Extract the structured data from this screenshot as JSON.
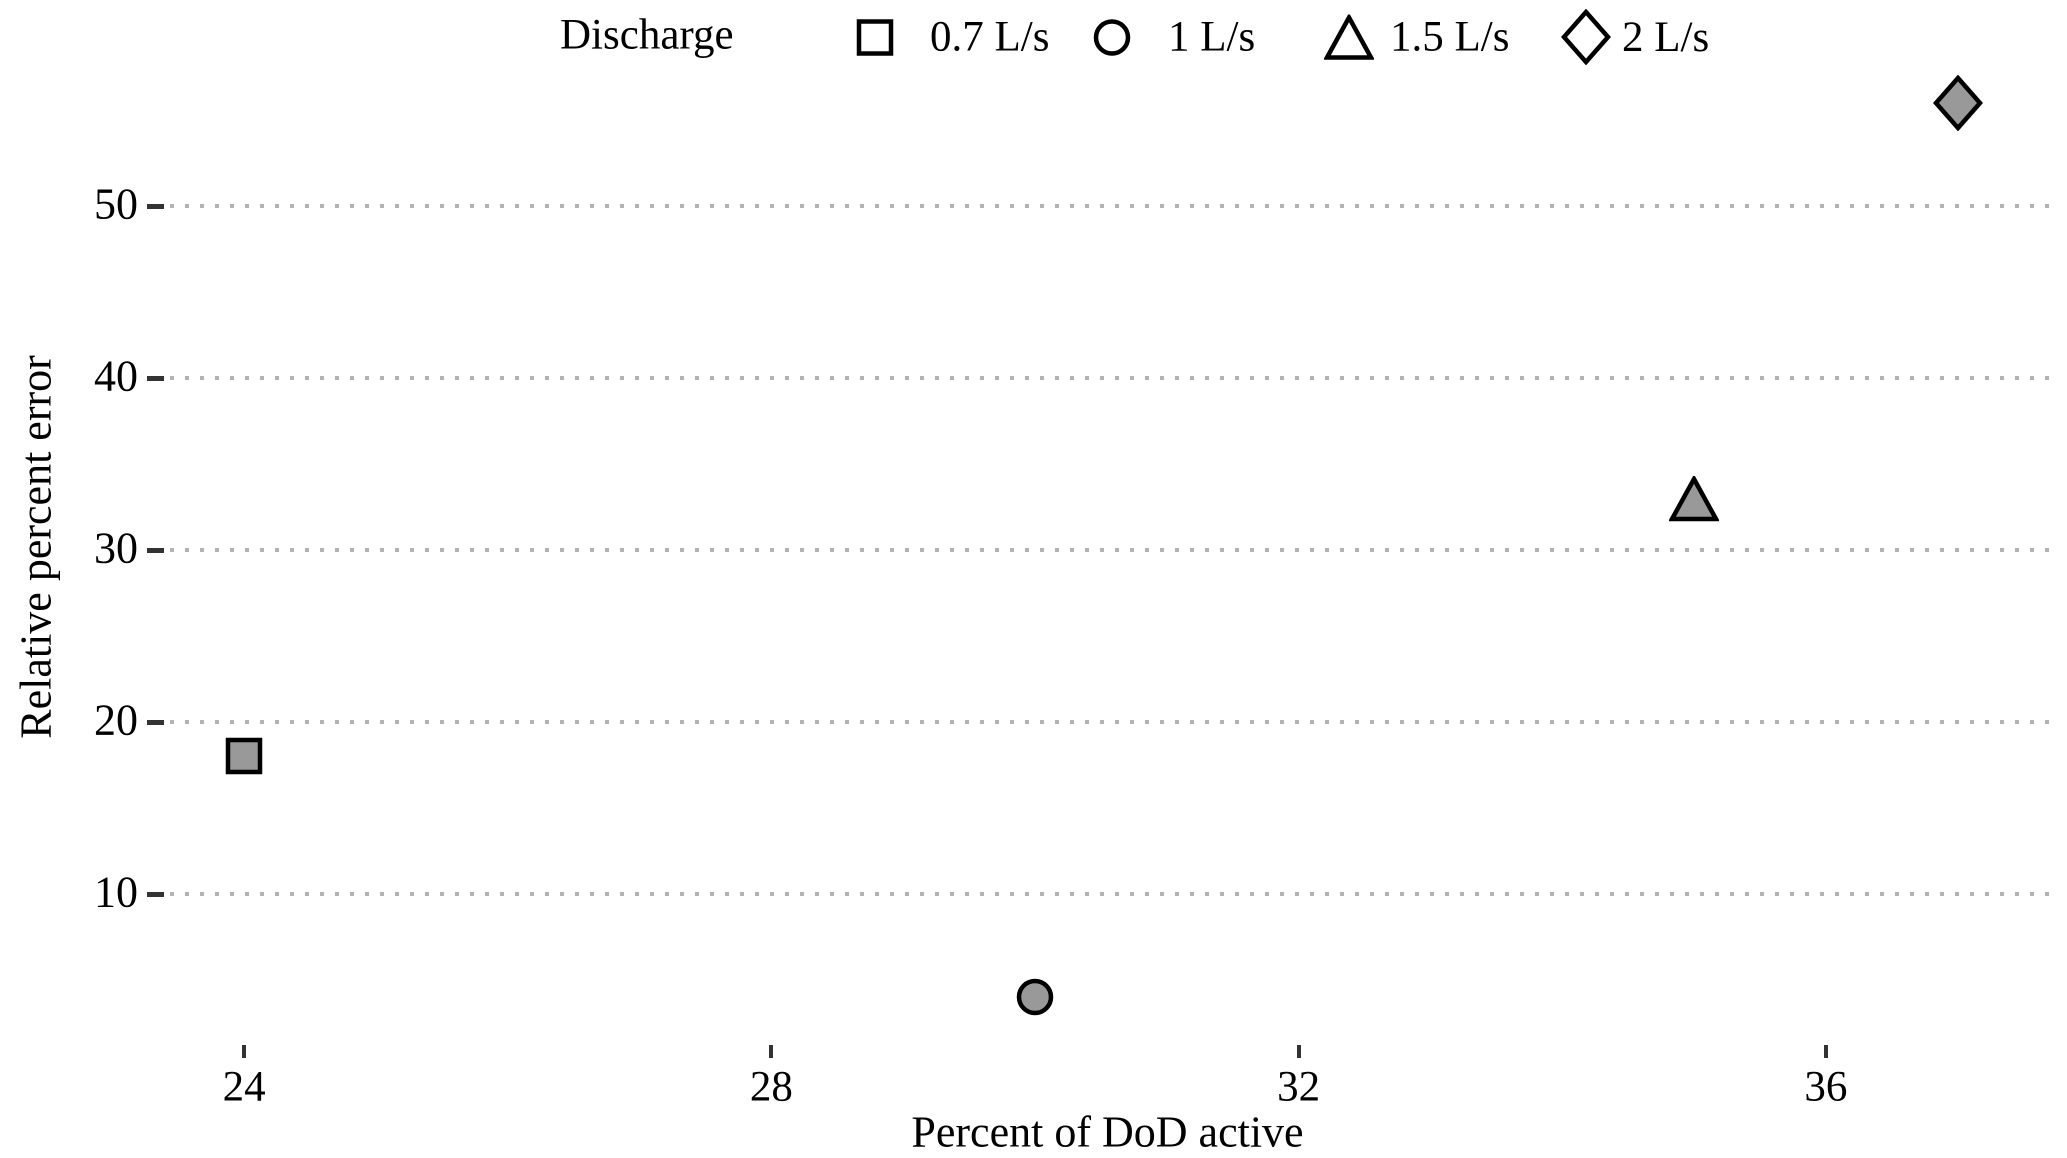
{
  "chart_data": {
    "type": "scatter",
    "title": "",
    "xlabel": "Percent of DoD active",
    "ylabel": "Relative percent error",
    "legend_title": "Discharge",
    "legend_position": "top",
    "x_ticks": [
      24,
      28,
      32,
      36
    ],
    "y_ticks": [
      10,
      20,
      30,
      40,
      50
    ],
    "xlim": [
      23.4,
      37.7
    ],
    "ylim": [
      1.5,
      58.8
    ],
    "grid": "horizontal-dotted",
    "series": [
      {
        "name": "0.7 L/s",
        "marker": "square",
        "x": 24,
        "y": 18
      },
      {
        "name": "1 L/s",
        "marker": "circle",
        "x": 30,
        "y": 4
      },
      {
        "name": "1.5 L/s",
        "marker": "triangle",
        "x": 35,
        "y": 33
      },
      {
        "name": "2 L/s",
        "marker": "diamond",
        "x": 37,
        "y": 56
      }
    ],
    "colors": {
      "marker_fill": "#999999",
      "marker_stroke": "#000000",
      "legend_symbol_fill": "#ffffff",
      "grid_dot": "#b3b3b3",
      "tick": "#333333",
      "text": "#000000",
      "background": "#ffffff"
    }
  }
}
